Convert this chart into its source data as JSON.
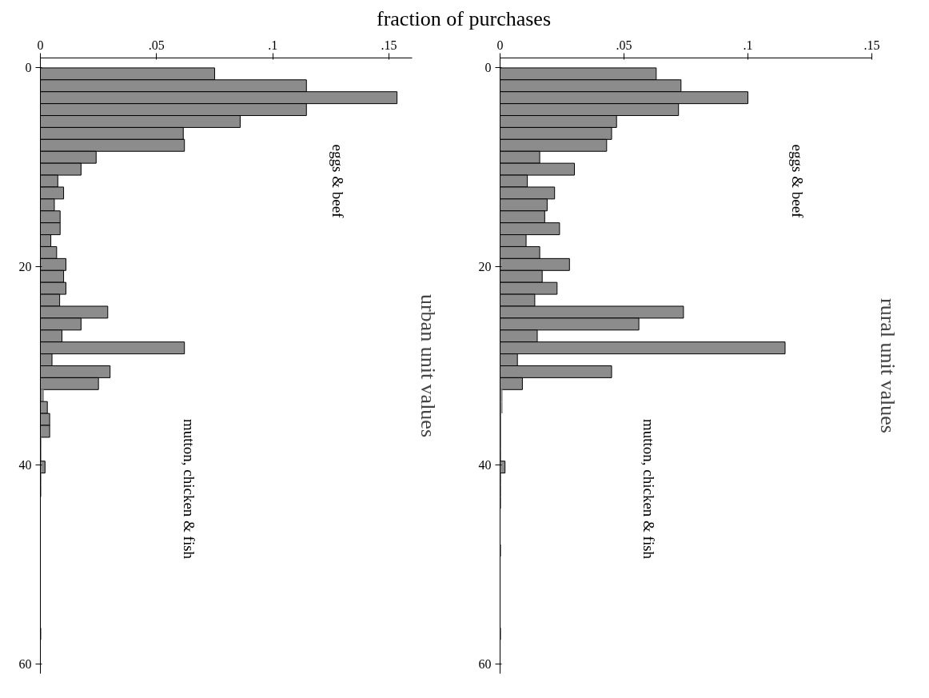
{
  "chart_data": [
    {
      "type": "histogram",
      "orientation": "horizontal",
      "title": "fraction of purchases",
      "ylabel": "urban unit values",
      "color": "#8c8c8c",
      "bins": [
        0,
        1.2,
        2.4,
        3.6,
        4.8,
        6,
        7.2,
        8.4,
        9.6,
        10.8,
        12,
        13.2,
        14.4,
        15.6,
        16.8,
        18,
        19.2,
        20.4,
        21.6,
        22.8,
        24,
        25.2,
        26.4,
        27.6,
        28.8,
        30,
        31.2,
        32.4,
        33.6,
        34.8,
        36,
        37.2,
        38.4,
        39.6,
        40.8,
        42,
        43.2,
        44.4,
        45.6,
        46.8,
        48,
        49.2,
        50.4,
        51.6,
        52.8,
        54,
        55.2,
        56.4,
        57.6,
        58.8,
        60
      ],
      "values": [
        0.075,
        0.1145,
        0.1535,
        0.1145,
        0.086,
        0.0615,
        0.062,
        0.024,
        0.0175,
        0.0075,
        0.01,
        0.006,
        0.0085,
        0.0085,
        0.0045,
        0.007,
        0.011,
        0.01,
        0.011,
        0.0083,
        0.029,
        0.0175,
        0.0093,
        0.062,
        0.005,
        0.03,
        0.025,
        0.0015,
        0.003,
        0.004,
        0.004,
        0.0005,
        0.0005,
        0.002,
        0.0005,
        0.0005,
        0,
        0,
        0,
        0,
        0,
        0,
        0,
        0,
        0,
        0,
        0,
        0.0005,
        0,
        0
      ],
      "xlim": [
        0,
        0.16
      ],
      "xticks": [
        0,
        {
          "value": 0.05,
          "label": ".05"
        },
        {
          "value": 0.1,
          "label": ".1"
        },
        {
          "value": 0.15,
          "label": ".15"
        }
      ],
      "ylim": [
        61,
        -1
      ],
      "yticks": [
        0,
        20,
        40,
        60
      ],
      "grid": false,
      "tick_labels": "xy",
      "annotations": [
        "eggs & beef",
        "mutton, chicken & fish"
      ]
    },
    {
      "type": "histogram",
      "orientation": "horizontal",
      "ylabel": "rural unit values",
      "color": "#8c8c8c",
      "bins": [
        0,
        1.2,
        2.4,
        3.6,
        4.8,
        6,
        7.2,
        8.4,
        9.6,
        10.8,
        12,
        13.2,
        14.4,
        15.6,
        16.8,
        18,
        19.2,
        20.4,
        21.6,
        22.8,
        24,
        25.2,
        26.4,
        27.6,
        28.8,
        30,
        31.2,
        32.4,
        33.6,
        34.8,
        36,
        37.2,
        38.4,
        39.6,
        40.8,
        42,
        43.2,
        44.4,
        45.6,
        46.8,
        48,
        49.2,
        50.4,
        51.6,
        52.8,
        54,
        55.2,
        56.4,
        57.6,
        58.8,
        60
      ],
      "values": [
        0.063,
        0.073,
        0.1,
        0.072,
        0.047,
        0.045,
        0.043,
        0.016,
        0.03,
        0.011,
        0.022,
        0.019,
        0.018,
        0.024,
        0.0105,
        0.016,
        0.028,
        0.017,
        0.023,
        0.014,
        0.074,
        0.056,
        0.015,
        0.115,
        0.007,
        0.045,
        0.009,
        0.001,
        0.001,
        0.0005,
        0.0005,
        0.0005,
        0.0005,
        0.002,
        0.0005,
        0.0005,
        0.0005,
        0,
        0,
        0,
        0.0005,
        0,
        0,
        0,
        0,
        0,
        0,
        0.0005,
        0,
        0
      ],
      "xlim": [
        0,
        0.15
      ],
      "xticks": [
        0,
        {
          "value": 0.05,
          "label": ".05"
        },
        {
          "value": 0.1,
          "label": ".1"
        },
        {
          "value": 0.15,
          "label": ".15"
        }
      ],
      "ylim": [
        61,
        -1
      ],
      "yticks": [
        0,
        20,
        40,
        60
      ],
      "grid": false,
      "tick_labels": "xy",
      "annotations": [
        "eggs & beef",
        "mutton, chicken & fish"
      ]
    }
  ]
}
